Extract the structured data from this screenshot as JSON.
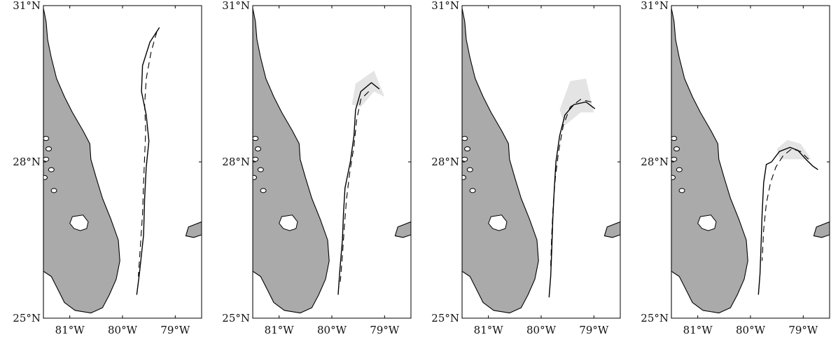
{
  "figure": {
    "panels": [
      {
        "id": "panel-1",
        "lat_labels": [
          "31°N",
          "28°N",
          "25°N"
        ],
        "lon_labels": [
          "81°W",
          "80°W",
          "79°W"
        ],
        "observed_track": [
          [
            -79.3,
            30.58
          ],
          [
            -79.48,
            30.3
          ],
          [
            -79.62,
            29.85
          ],
          [
            -79.64,
            29.35
          ],
          [
            -79.55,
            28.9
          ],
          [
            -79.5,
            28.4
          ],
          [
            -79.55,
            27.9
          ],
          [
            -79.58,
            27.3
          ],
          [
            -79.6,
            26.6
          ],
          [
            -79.68,
            25.85
          ],
          [
            -79.73,
            25.45
          ]
        ],
        "model_track": [
          [
            -79.35,
            30.5
          ],
          [
            -79.46,
            30.1
          ],
          [
            -79.55,
            29.6
          ],
          [
            -79.58,
            29.1
          ],
          [
            -79.56,
            28.6
          ],
          [
            -79.58,
            28.1
          ],
          [
            -79.6,
            27.6
          ],
          [
            -79.62,
            27.0
          ],
          [
            -79.66,
            26.4
          ],
          [
            -79.7,
            25.8
          ]
        ],
        "spread": []
      },
      {
        "id": "panel-2",
        "lat_labels": [
          "31°N",
          "28°N",
          "25°N"
        ],
        "lon_labels": [
          "81°W",
          "80°W",
          "79°W"
        ],
        "observed_track": [
          [
            -79.1,
            29.4
          ],
          [
            -79.25,
            29.52
          ],
          [
            -79.45,
            29.35
          ],
          [
            -79.55,
            29.0
          ],
          [
            -79.58,
            28.5
          ],
          [
            -79.65,
            28.0
          ],
          [
            -79.75,
            27.5
          ],
          [
            -79.78,
            27.0
          ],
          [
            -79.8,
            26.5
          ],
          [
            -79.85,
            25.9
          ],
          [
            -79.88,
            25.45
          ]
        ],
        "model_track": [
          [
            -79.3,
            29.35
          ],
          [
            -79.45,
            29.2
          ],
          [
            -79.53,
            28.8
          ],
          [
            -79.58,
            28.3
          ],
          [
            -79.66,
            27.8
          ],
          [
            -79.72,
            27.3
          ],
          [
            -79.76,
            26.8
          ],
          [
            -79.8,
            26.2
          ],
          [
            -79.84,
            25.7
          ]
        ],
        "spread": [
          [
            -79.0,
            29.25
          ],
          [
            -79.2,
            29.75
          ],
          [
            -79.55,
            29.5
          ],
          [
            -79.62,
            29.1
          ],
          [
            -79.45,
            29.05
          ],
          [
            -79.2,
            29.35
          ]
        ]
      },
      {
        "id": "panel-3",
        "lat_labels": [
          "31°N",
          "28°N",
          "25°N"
        ],
        "lon_labels": [
          "81°W",
          "80°W",
          "79°W"
        ],
        "observed_track": [
          [
            -78.98,
            29.02
          ],
          [
            -79.15,
            29.15
          ],
          [
            -79.38,
            29.1
          ],
          [
            -79.55,
            28.9
          ],
          [
            -79.65,
            28.5
          ],
          [
            -79.72,
            28.0
          ],
          [
            -79.75,
            27.5
          ],
          [
            -79.78,
            26.9
          ],
          [
            -79.8,
            26.3
          ],
          [
            -79.82,
            25.8
          ],
          [
            -79.85,
            25.4
          ]
        ],
        "model_track": [
          [
            -79.05,
            29.15
          ],
          [
            -79.25,
            29.2
          ],
          [
            -79.45,
            29.05
          ],
          [
            -79.58,
            28.7
          ],
          [
            -79.67,
            28.2
          ],
          [
            -79.73,
            27.7
          ],
          [
            -79.77,
            27.2
          ],
          [
            -79.8,
            26.6
          ],
          [
            -79.82,
            26.0
          ]
        ],
        "spread": [
          [
            -79.0,
            28.95
          ],
          [
            -79.15,
            29.6
          ],
          [
            -79.45,
            29.55
          ],
          [
            -79.65,
            29.0
          ],
          [
            -79.55,
            28.7
          ],
          [
            -79.25,
            28.95
          ]
        ]
      },
      {
        "id": "panel-4",
        "lat_labels": [
          "31°N",
          "28°N",
          "25°N"
        ],
        "lon_labels": [
          "81°W",
          "80°W",
          "79°W"
        ],
        "observed_track": [
          [
            -78.72,
            27.85
          ],
          [
            -78.82,
            27.92
          ],
          [
            -78.95,
            28.05
          ],
          [
            -79.1,
            28.22
          ],
          [
            -79.25,
            28.28
          ],
          [
            -79.45,
            28.2
          ],
          [
            -79.6,
            28.0
          ],
          [
            -79.7,
            27.95
          ],
          [
            -79.75,
            27.6
          ],
          [
            -79.78,
            27.0
          ],
          [
            -79.8,
            26.4
          ],
          [
            -79.82,
            25.85
          ],
          [
            -79.85,
            25.45
          ]
        ],
        "model_track": [
          [
            -78.9,
            28.05
          ],
          [
            -79.05,
            28.2
          ],
          [
            -79.22,
            28.25
          ],
          [
            -79.38,
            28.12
          ],
          [
            -79.52,
            27.9
          ],
          [
            -79.62,
            27.6
          ],
          [
            -79.7,
            27.2
          ],
          [
            -79.75,
            26.7
          ],
          [
            -79.78,
            26.1
          ]
        ],
        "spread": [
          [
            -78.85,
            28.05
          ],
          [
            -79.05,
            28.35
          ],
          [
            -79.3,
            28.42
          ],
          [
            -79.5,
            28.25
          ],
          [
            -79.45,
            28.05
          ],
          [
            -79.15,
            28.05
          ]
        ]
      }
    ]
  }
}
